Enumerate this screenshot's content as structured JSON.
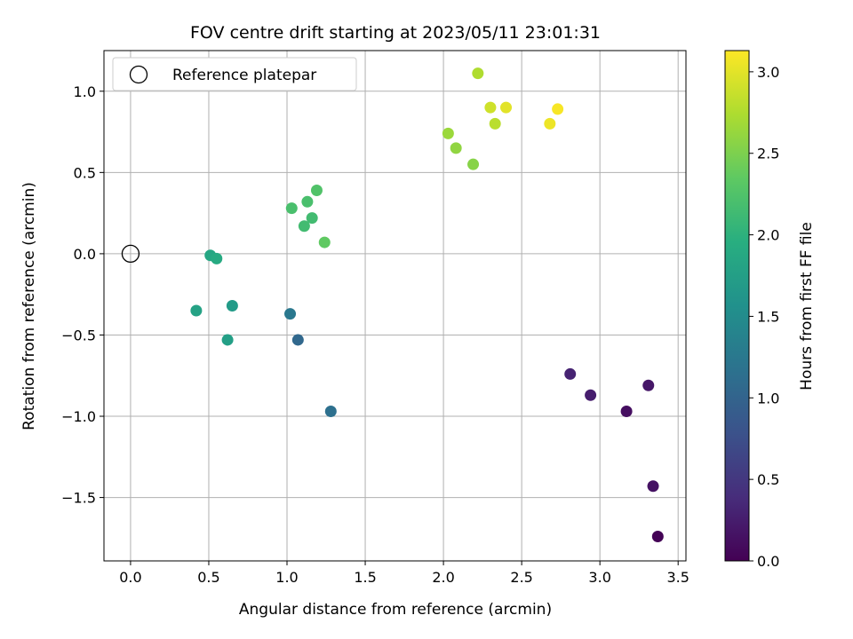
{
  "chart_data": {
    "type": "scatter",
    "title": "FOV centre drift starting at 2023/05/11 23:01:31",
    "xlabel": "Angular distance from reference (arcmin)",
    "ylabel": "Rotation from reference (arcmin)",
    "xlim": [
      -0.17,
      3.55
    ],
    "ylim": [
      -1.89,
      1.25
    ],
    "xticks": [
      0.0,
      0.5,
      1.0,
      1.5,
      2.0,
      2.5,
      3.0,
      3.5
    ],
    "xtick_labels": [
      "0.0",
      "0.5",
      "1.0",
      "1.5",
      "2.0",
      "2.5",
      "3.0",
      "3.5"
    ],
    "yticks": [
      -1.5,
      -1.0,
      -0.5,
      0.0,
      0.5,
      1.0
    ],
    "ytick_labels": [
      "−1.5",
      "−1.0",
      "−0.5",
      "0.0",
      "0.5",
      "1.0"
    ],
    "grid": true,
    "legend": {
      "position": "top-left",
      "entries": [
        "Reference platepar"
      ]
    },
    "colorbar": {
      "label": "Hours from first FF file",
      "colormap": "viridis",
      "range": [
        0.0,
        3.13
      ],
      "ticks": [
        0.0,
        0.5,
        1.0,
        1.5,
        2.0,
        2.5,
        3.0
      ],
      "tick_labels": [
        "0.0",
        "0.5",
        "1.0",
        "1.5",
        "2.0",
        "2.5",
        "3.0"
      ]
    },
    "reference_point": {
      "x": 0.0,
      "y": 0.0
    },
    "points": [
      {
        "x": 3.37,
        "y": -1.74,
        "c": 0.02
      },
      {
        "x": 3.34,
        "y": -1.43,
        "c": 0.15
      },
      {
        "x": 3.31,
        "y": -0.81,
        "c": 0.2
      },
      {
        "x": 3.17,
        "y": -0.97,
        "c": 0.12
      },
      {
        "x": 2.94,
        "y": -0.87,
        "c": 0.25
      },
      {
        "x": 2.81,
        "y": -0.74,
        "c": 0.3
      },
      {
        "x": 1.28,
        "y": -0.97,
        "c": 1.15
      },
      {
        "x": 1.07,
        "y": -0.53,
        "c": 1.05
      },
      {
        "x": 1.02,
        "y": -0.37,
        "c": 1.25
      },
      {
        "x": 0.65,
        "y": -0.32,
        "c": 1.7
      },
      {
        "x": 0.62,
        "y": -0.53,
        "c": 1.75
      },
      {
        "x": 0.42,
        "y": -0.35,
        "c": 1.8
      },
      {
        "x": 0.51,
        "y": -0.01,
        "c": 1.85
      },
      {
        "x": 0.55,
        "y": -0.03,
        "c": 1.9
      },
      {
        "x": 1.03,
        "y": 0.28,
        "c": 2.2
      },
      {
        "x": 1.11,
        "y": 0.17,
        "c": 2.15
      },
      {
        "x": 1.13,
        "y": 0.32,
        "c": 2.2
      },
      {
        "x": 1.16,
        "y": 0.22,
        "c": 2.15
      },
      {
        "x": 1.19,
        "y": 0.39,
        "c": 2.25
      },
      {
        "x": 1.24,
        "y": 0.07,
        "c": 2.35
      },
      {
        "x": 2.03,
        "y": 0.74,
        "c": 2.65
      },
      {
        "x": 2.08,
        "y": 0.65,
        "c": 2.6
      },
      {
        "x": 2.19,
        "y": 0.55,
        "c": 2.55
      },
      {
        "x": 2.22,
        "y": 1.11,
        "c": 2.75
      },
      {
        "x": 2.3,
        "y": 0.9,
        "c": 2.9
      },
      {
        "x": 2.33,
        "y": 0.8,
        "c": 2.8
      },
      {
        "x": 2.4,
        "y": 0.9,
        "c": 3.0
      },
      {
        "x": 2.68,
        "y": 0.8,
        "c": 3.05
      },
      {
        "x": 2.73,
        "y": 0.89,
        "c": 3.1
      }
    ]
  }
}
